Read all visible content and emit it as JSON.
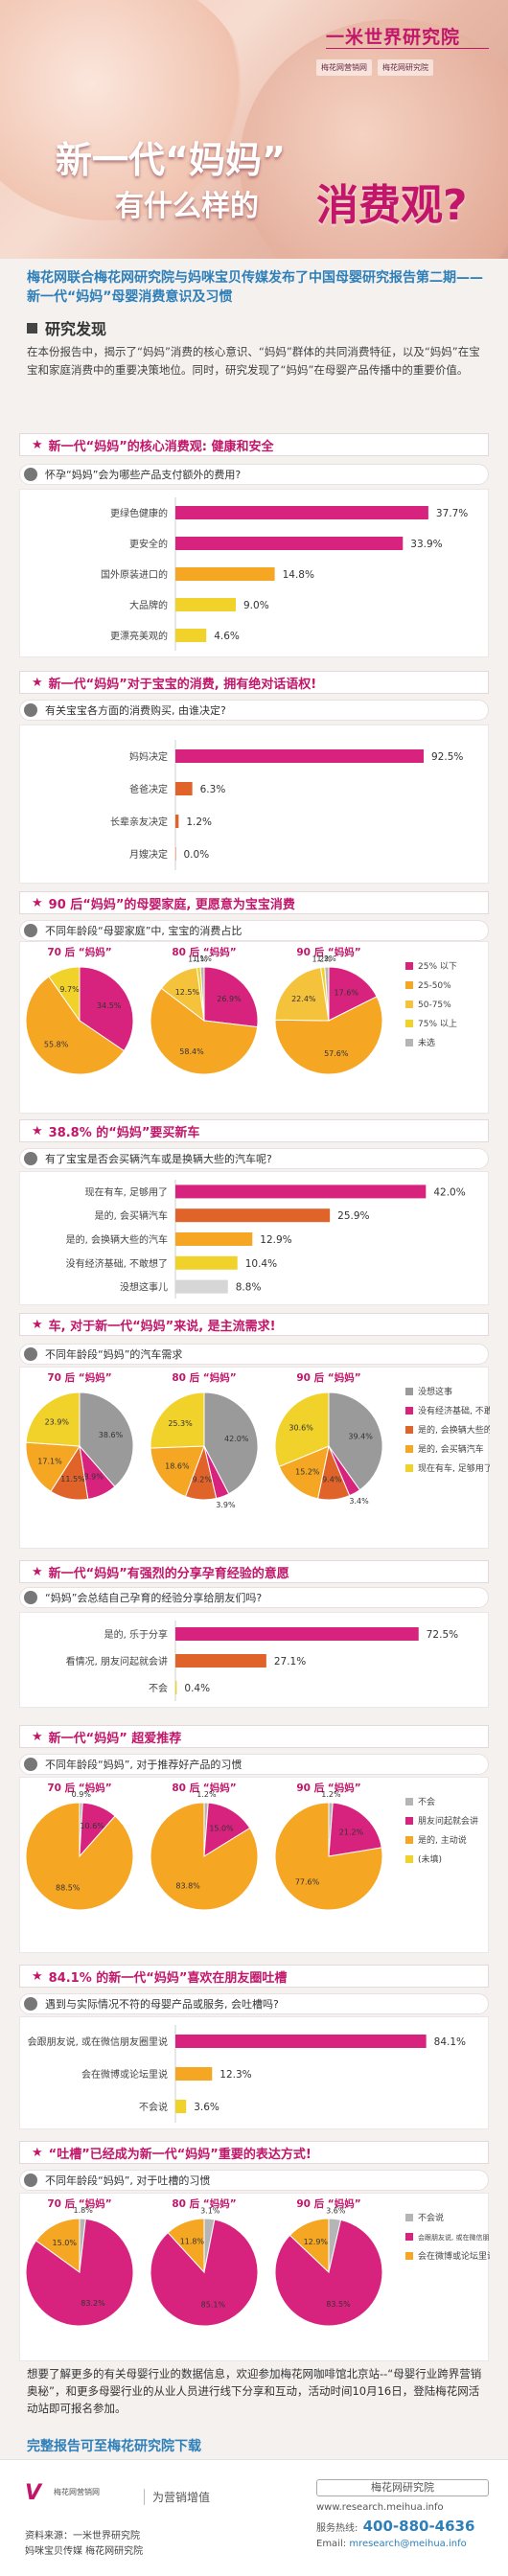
{
  "header": {
    "brand": "一米世界研究院",
    "logo_left": "梅花网营销网",
    "logo_right": "梅花网研究院",
    "title_line1": "新一代“妈妈”",
    "title_line2": "有什么样的",
    "title_highlight": "消费观?"
  },
  "intro": "梅花网联合梅花网研究院与妈咪宝贝传媒发布了中国母婴研究报告第二期——新一代“妈妈”母婴消费意识及习惯",
  "research": {
    "heading": "研究发现",
    "paragraph": "在本份报告中，揭示了“妈妈”消费的核心意识、“妈妈”群体的共同消费特征，以及“妈妈”在宝宝和家庭消费中的重要决策地位。同时，研究发现了“妈妈”在母婴产品传播中的重要价值。"
  },
  "colors": {
    "accent": "#c1166a",
    "blue": "#2e7fb8",
    "magenta": "#d8237e",
    "orange": "#f5a623",
    "yellow": "#f0d22a",
    "red": "#e0632a",
    "grey": "#b5b5b5",
    "lightgrey": "#d6d6d6"
  },
  "sections": [
    {
      "title": "新一代“妈妈”的核心消费观: 健康和安全",
      "question": "怀孕“妈妈”会为哪些产品支付额外的费用?"
    },
    {
      "title": "新一代“妈妈”对于宝宝的消费, 拥有绝对话语权!",
      "question": "有关宝宝各方面的消费购买, 由谁决定?"
    },
    {
      "title": "90 后“妈妈”的母婴家庭, 更愿意为宝宝消费",
      "question": "不同年龄段“母婴家庭”中, 宝宝的消费占比"
    },
    {
      "title": "38.8% 的“妈妈”要买新车",
      "question": "有了宝宝是否会买辆汽车或是换辆大些的汽车呢?"
    },
    {
      "title": "车, 对于新一代“妈妈”来说, 是主流需求!",
      "question": "不同年龄段“妈妈”的汽车需求"
    },
    {
      "title": "新一代“妈妈”有强烈的分享孕育经验的意愿",
      "question": "“妈妈”会总结自己孕育的经验分享给朋友们吗?"
    },
    {
      "title": "新一代“妈妈” 超爱推荐",
      "question": "不同年龄段“妈妈”, 对于推荐好产品的习惯"
    },
    {
      "title": "84.1% 的新一代“妈妈”喜欢在朋友圈吐槽",
      "question": "遇到与实际情况不符的母婴产品或服务, 会吐槽吗?"
    },
    {
      "title": "“吐槽”已经成为新一代“妈妈”重要的表达方式!",
      "question": "不同年龄段“妈妈”, 对于吐槽的习惯"
    }
  ],
  "chart_data": [
    {
      "type": "bar",
      "id": "c1",
      "categories": [
        "更绿色健康的",
        "更安全的",
        "国外原装进口的",
        "大品牌的",
        "更漂亮美观的"
      ],
      "values": [
        37.7,
        33.9,
        14.8,
        9.0,
        4.6
      ],
      "labels": [
        "37.7%",
        "33.9%",
        "14.8%",
        "9.0%",
        "4.6%"
      ],
      "colors": [
        "#d8237e",
        "#d8237e",
        "#f5a623",
        "#f0d22a",
        "#f0d22a"
      ],
      "max": 40
    },
    {
      "type": "bar",
      "id": "c2",
      "categories": [
        "妈妈决定",
        "爸爸决定",
        "长辈亲友决定",
        "月嫂决定"
      ],
      "values": [
        92.5,
        6.3,
        1.2,
        0.0
      ],
      "labels": [
        "92.5%",
        "6.3%",
        "1.2%",
        "0.0%"
      ],
      "colors": [
        "#d8237e",
        "#e0632a",
        "#e0632a",
        "#e0632a"
      ],
      "max": 100
    },
    {
      "type": "pie",
      "id": "c3",
      "titles": [
        "70 后 “妈妈”",
        "80 后 “妈妈”",
        "90 后 “妈妈”"
      ],
      "legend": [
        "25% 以下",
        "25-50%",
        "50-75%",
        "75% 以上",
        "未选"
      ],
      "colors": [
        "#d8237e",
        "#f5a623",
        "#f5c33b",
        "#f0d22a",
        "#b5b5b5"
      ],
      "pies": [
        {
          "values": [
            34.5,
            55.8,
            0,
            9.7,
            0
          ],
          "labels": [
            "34.5%",
            "55.8%",
            "",
            "9.7%",
            ""
          ]
        },
        {
          "values": [
            26.9,
            58.4,
            12.5,
            1.1,
            1.1
          ],
          "labels": [
            "26.9%",
            "58.4%",
            "12.5%",
            "1.1%",
            "1.1%"
          ]
        },
        {
          "values": [
            17.6,
            57.6,
            22.4,
            1.2,
            1.2
          ],
          "labels": [
            "17.6%",
            "57.6%",
            "22.4%",
            "1.2%",
            "1.2%"
          ]
        }
      ]
    },
    {
      "type": "bar",
      "id": "c4",
      "categories": [
        "现在有车, 足够用了",
        "是的, 会买辆汽车",
        "是的, 会换辆大些的汽车",
        "没有经济基础, 不敢想了",
        "没想这事儿"
      ],
      "values": [
        42.0,
        25.9,
        12.9,
        10.4,
        8.8
      ],
      "labels": [
        "42.0%",
        "25.9%",
        "12.9%",
        "10.4%",
        "8.8%"
      ],
      "colors": [
        "#d8237e",
        "#e0632a",
        "#f5a623",
        "#f0d22a",
        "#d6d6d6"
      ],
      "max": 45
    },
    {
      "type": "pie",
      "id": "c5",
      "titles": [
        "70 后 “妈妈”",
        "80 后 “妈妈”",
        "90 后 “妈妈”"
      ],
      "legend": [
        "没想这事",
        "没有经济基础, 不敢想了",
        "是的, 会换辆大些的汽车",
        "是的, 会买辆汽车",
        "现在有车, 足够用了"
      ],
      "colors": [
        "#9a9a9a",
        "#d8237e",
        "#e0632a",
        "#f5a623",
        "#f0d22a"
      ],
      "pies": [
        {
          "values": [
            38.6,
            8.9,
            11.5,
            17.1,
            23.9
          ],
          "labels": [
            "38.6%",
            "8.9%",
            "11.5%",
            "17.1%",
            "23.9%"
          ]
        },
        {
          "values": [
            42.0,
            3.9,
            9.2,
            18.6,
            25.3
          ],
          "labels": [
            "42.0%",
            "3.9%",
            "9.2%",
            "18.6%",
            "25.3%"
          ]
        },
        {
          "values": [
            39.4,
            3.4,
            9.4,
            15.2,
            30.6
          ],
          "labels": [
            "39.4%",
            "3.4%",
            "9.4%",
            "15.2%",
            "30.6%"
          ]
        }
      ]
    },
    {
      "type": "bar",
      "id": "c6",
      "categories": [
        "是的, 乐于分享",
        "看情况, 朋友问起就会讲",
        "不会"
      ],
      "values": [
        72.5,
        27.1,
        0.4
      ],
      "labels": [
        "72.5%",
        "27.1%",
        "0.4%"
      ],
      "colors": [
        "#d8237e",
        "#e0632a",
        "#f0d22a"
      ],
      "max": 80
    },
    {
      "type": "pie",
      "id": "c7",
      "titles": [
        "70 后 “妈妈”",
        "80 后 “妈妈”",
        "90 后 “妈妈”"
      ],
      "legend": [
        "不会",
        "朋友问起就会讲",
        "是的, 主动说",
        "(未填)"
      ],
      "colors": [
        "#b5b5b5",
        "#d8237e",
        "#f5a623",
        "#f0d22a"
      ],
      "pies": [
        {
          "values": [
            0.9,
            10.6,
            88.5,
            0
          ],
          "labels": [
            "0.9%",
            "10.6%",
            "88.5%",
            ""
          ]
        },
        {
          "values": [
            1.2,
            15.0,
            83.8,
            0
          ],
          "labels": [
            "1.2%",
            "15.0%",
            "83.8%",
            ""
          ]
        },
        {
          "values": [
            1.2,
            21.2,
            77.6,
            0
          ],
          "labels": [
            "1.2%",
            "21.2%",
            "77.6%",
            ""
          ]
        }
      ]
    },
    {
      "type": "bar",
      "id": "c8",
      "categories": [
        "会跟朋友说, 或在微信朋友圈里说",
        "会在微博或论坛里说",
        "不会说"
      ],
      "values": [
        84.1,
        12.3,
        3.6
      ],
      "labels": [
        "84.1%",
        "12.3%",
        "3.6%"
      ],
      "colors": [
        "#d8237e",
        "#f5a623",
        "#f0d22a"
      ],
      "max": 90
    },
    {
      "type": "pie",
      "id": "c9",
      "titles": [
        "70 后 “妈妈”",
        "80 后 “妈妈”",
        "90 后 “妈妈”"
      ],
      "legend": [
        "不会说",
        "会跟朋友说, 或在微信朋友圈里说",
        "会在微博或论坛里说"
      ],
      "colors": [
        "#b5b5b5",
        "#d8237e",
        "#f5a623"
      ],
      "pies": [
        {
          "values": [
            1.8,
            83.2,
            15.0
          ],
          "labels": [
            "1.8%",
            "83.2%",
            "15.0%"
          ]
        },
        {
          "values": [
            3.1,
            85.1,
            11.8
          ],
          "labels": [
            "3.1%",
            "85.1%",
            "11.8%"
          ]
        },
        {
          "values": [
            3.6,
            83.5,
            12.9
          ],
          "labels": [
            "3.6%",
            "83.5%",
            "12.9%"
          ]
        }
      ]
    }
  ],
  "footer": {
    "text": "想要了解更多的有关母婴行业的数据信息，欢迎参加梅花网咖啡馆北京站--“母婴行业跨界营销奥秘”，和更多母婴行业的从业人员进行线下分享和互动，活动时间10月16日，登陆梅花网活动站即可报名参加。",
    "download": "完整报告可至梅花研究院下载",
    "logo": "V",
    "logo_sub": "梅花网营销网",
    "logo2": "为营销增值",
    "source": "资料来源：一米世界研究院",
    "source2": "妈咪宝贝传媒   梅花网研究院",
    "box": "梅花网研究院",
    "web": "www.research.meihua.info",
    "tel_label": "服务热线:",
    "tel": "400-880-4636",
    "mail_label": "Email:",
    "mail": "mresearch@meihua.info"
  }
}
